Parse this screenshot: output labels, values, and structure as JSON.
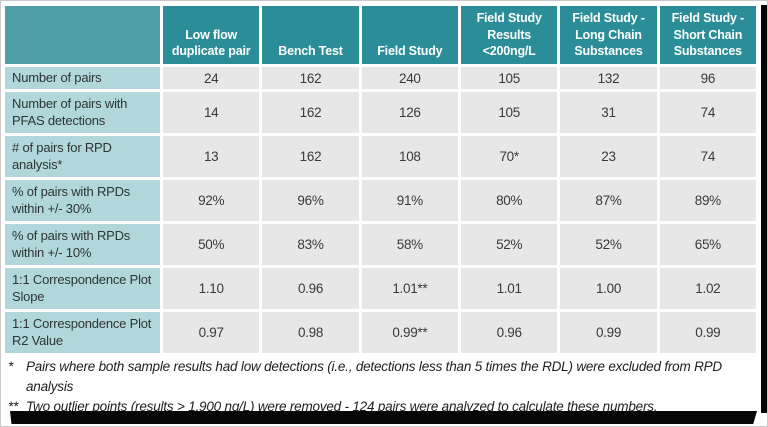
{
  "chart_data": {
    "type": "table",
    "corner_label": "",
    "columns": [
      "Low flow duplicate pair",
      "Bench Test",
      "Field Study",
      "Field Study Results <200ng/L",
      "Field Study - Long Chain Substances",
      "Field Study - Short Chain Substances"
    ],
    "rows": [
      {
        "label": "Number of pairs",
        "values": [
          "24",
          "162",
          "240",
          "105",
          "132",
          "96"
        ]
      },
      {
        "label": "Number of pairs with PFAS detections",
        "values": [
          "14",
          "162",
          "126",
          "105",
          "31",
          "74"
        ]
      },
      {
        "label": "# of pairs for RPD analysis*",
        "values": [
          "13",
          "162",
          "108",
          "70*",
          "23",
          "74"
        ]
      },
      {
        "label": "% of pairs with RPDs within +/- 30%",
        "values": [
          "92%",
          "96%",
          "91%",
          "80%",
          "87%",
          "89%"
        ]
      },
      {
        "label": "% of pairs with RPDs within +/- 10%",
        "values": [
          "50%",
          "83%",
          "58%",
          "52%",
          "52%",
          "65%"
        ]
      },
      {
        "label": "1:1 Correspondence Plot Slope",
        "values": [
          "1.10",
          "0.96",
          "1.01**",
          "1.01",
          "1.00",
          "1.02"
        ]
      },
      {
        "label": "1:1 Correspondence Plot R2 Value",
        "values": [
          "0.97",
          "0.98",
          "0.99**",
          "0.96",
          "0.99",
          "0.99"
        ]
      }
    ],
    "footnotes": [
      {
        "marker": "*",
        "text": "Pairs where both sample results had low detections (i.e., detections less than 5 times the RDL) were excluded from RPD analysis"
      },
      {
        "marker": "**",
        "text": "Two outlier points (results > 1,900 ng/L) were removed - 124 pairs were analyzed to calculate these numbers."
      }
    ]
  },
  "colors": {
    "header_teal": "#2b8d97",
    "corner_teal": "#4f9fa8",
    "label_teal": "#b1d7da",
    "cell_gray": "#e7e7e7",
    "shadow_black": "#060606"
  }
}
